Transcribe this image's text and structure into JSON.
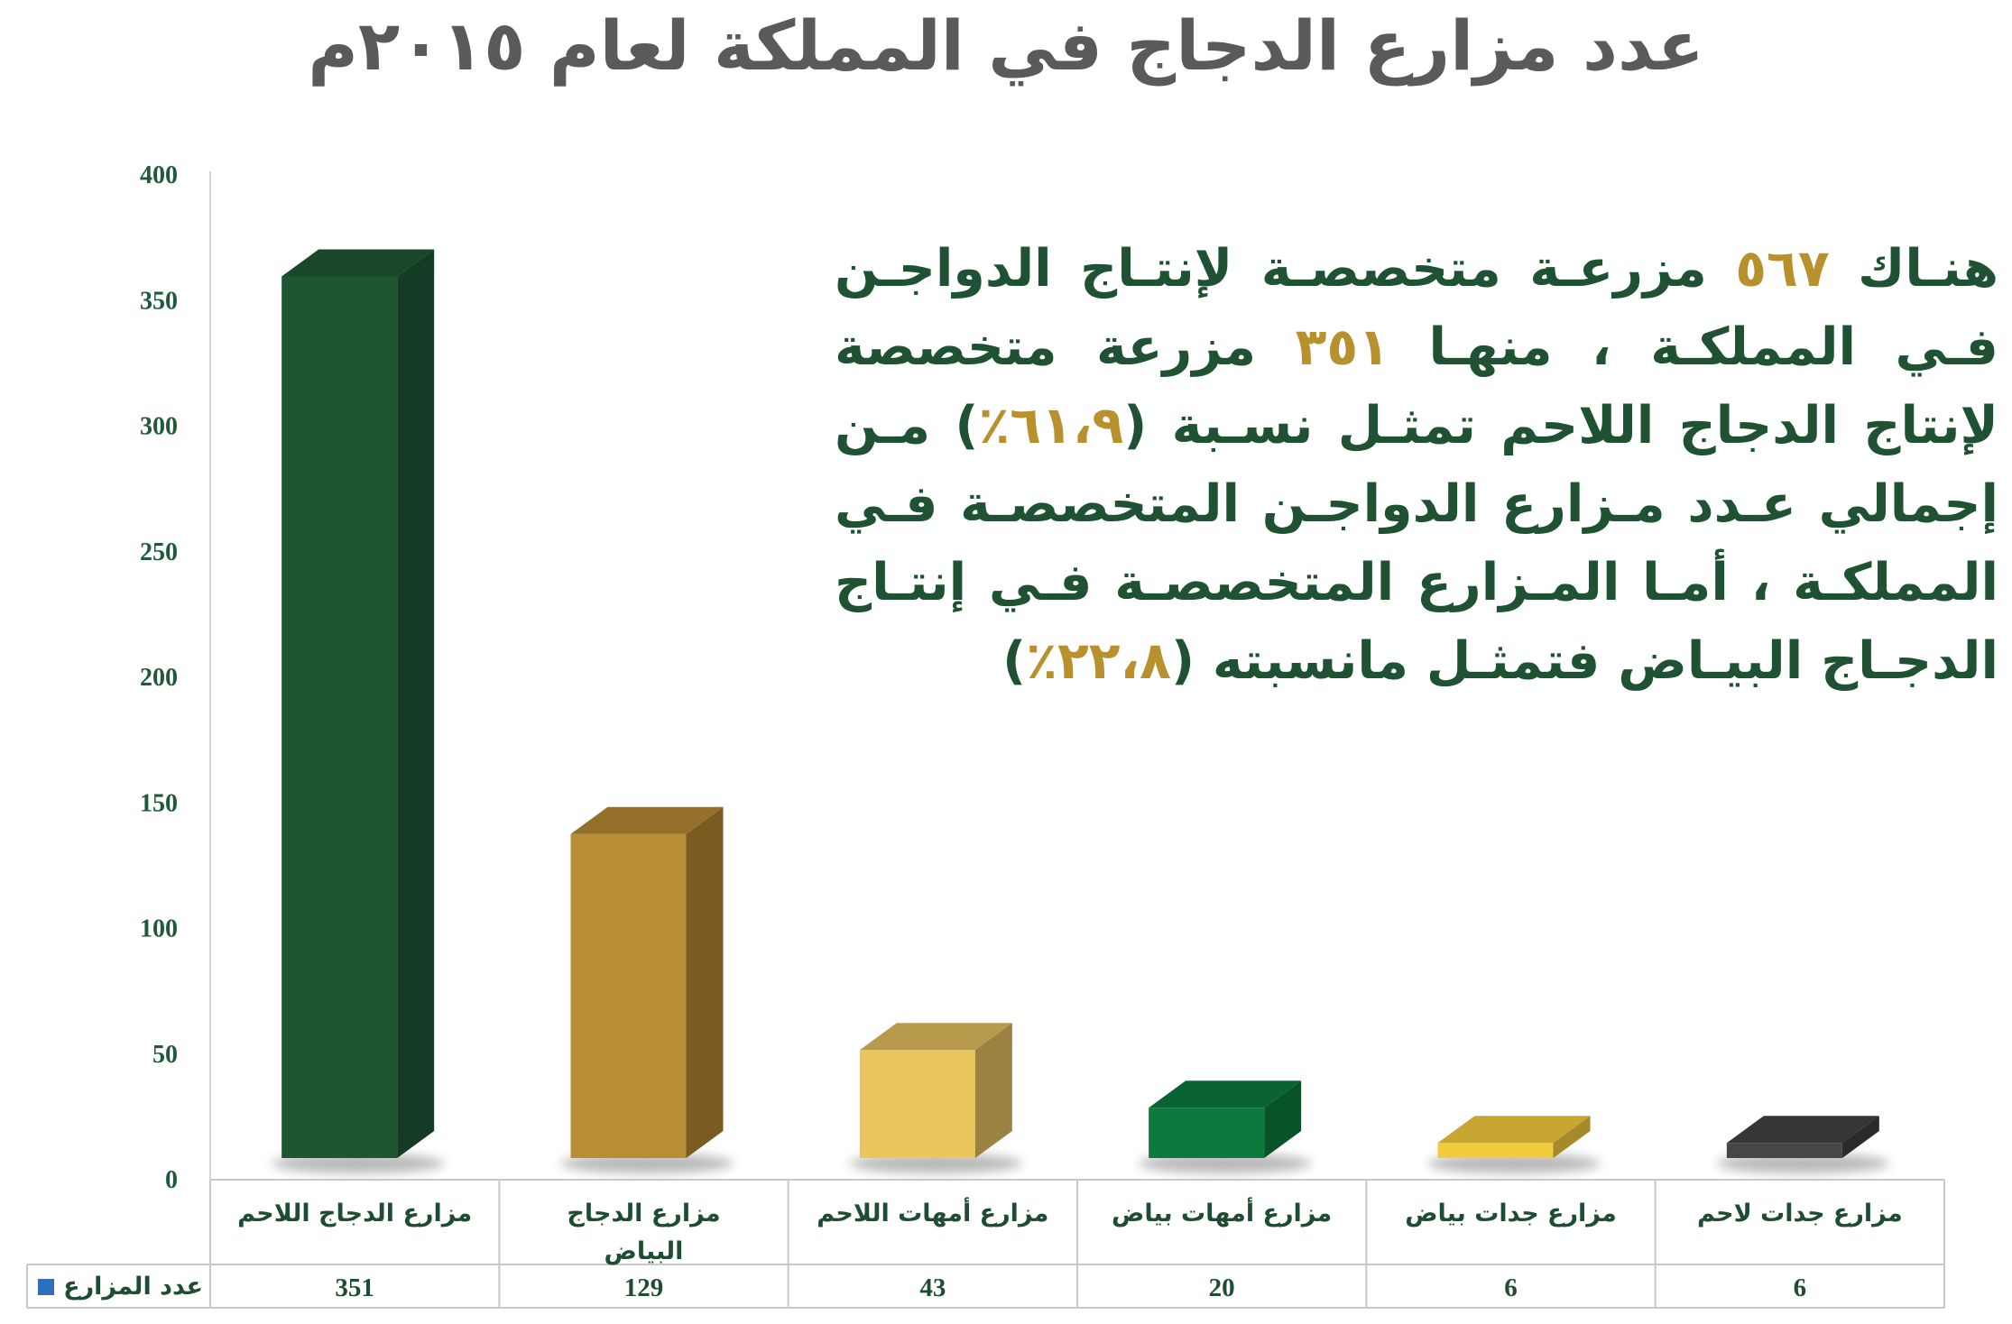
{
  "chart_data": {
    "type": "bar",
    "title": "عدد مزارع الدجاج في المملكة لعام ٢٠١٥م",
    "categories": [
      [
        "مزارع الدجاج اللاحم"
      ],
      [
        "مزارع الدجاج",
        "البياض"
      ],
      [
        "مزارع  أمهات اللاحم"
      ],
      [
        "مزارع أمهات بياض"
      ],
      [
        "مزارع  جدات بياض"
      ],
      [
        "مزارع  جدات لاحم"
      ]
    ],
    "series": [
      {
        "name": "عدد المزارع",
        "values": [
          351,
          129,
          43,
          20,
          6,
          6
        ]
      }
    ],
    "bar_colors": [
      {
        "front": "#1e5632",
        "side": "#143b23",
        "top": "#18472a"
      },
      {
        "front": "#b98d33",
        "side": "#7a5b22",
        "top": "#94702a"
      },
      {
        "front": "#ebc65e",
        "side": "#9b8240",
        "top": "#b89a4c"
      },
      {
        "front": "#0b7a3c",
        "side": "#085428",
        "top": "#0a6332"
      },
      {
        "front": "#f2cc3c",
        "side": "#a38a2a",
        "top": "#c7a632"
      },
      {
        "front": "#464646",
        "side": "#2a2a2a",
        "top": "#363636"
      }
    ],
    "legend_marker_color": "#2f6ebd",
    "ylim": [
      0,
      400
    ],
    "yticks": [
      0,
      50,
      100,
      150,
      200,
      250,
      300,
      350,
      400
    ],
    "data_table": true
  },
  "annotation": {
    "parts": [
      {
        "text": "هنـاك ",
        "highlight": false
      },
      {
        "text": "٥٦٧",
        "highlight": true
      },
      {
        "text": " مزرعـة متخصصـة لإنتـاج الدواجـن فـي المملكـة ، منهـا ",
        "highlight": false
      },
      {
        "text": "٣٥١",
        "highlight": true
      },
      {
        "text": " مزرعة متخصصة لإنتاج الدجاج اللاحم تمثـل نسـبة (",
        "highlight": false
      },
      {
        "text": "٦١،٩٪",
        "highlight": true
      },
      {
        "text": ") مـن إجمالي عـدد مـزارع الدواجـن المتخصصـة فـي المملكـة ، أمـا المـزارع المتخصصـة فـي إنتـاج الدجـاج البيـاض فتمثـل مانسبته (",
        "highlight": false
      },
      {
        "text": "٢٢،٨٪",
        "highlight": true
      },
      {
        "text": ")",
        "highlight": false
      }
    ]
  }
}
